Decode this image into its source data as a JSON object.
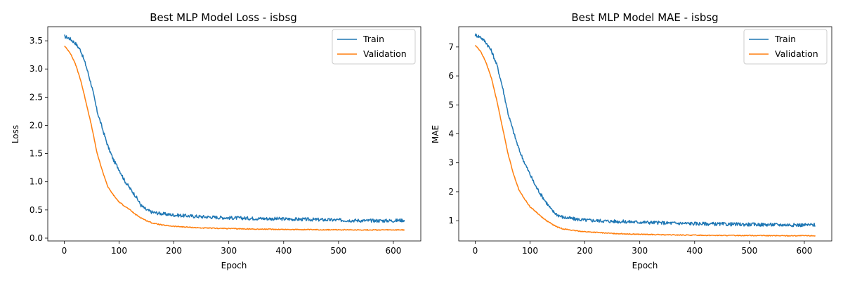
{
  "colors": {
    "train": "#1f77b4",
    "validation": "#ff7f0e",
    "axes": "#000000",
    "legend_border": "#cccccc"
  },
  "legend_labels": [
    "Train",
    "Validation"
  ],
  "chart_data": [
    {
      "type": "line",
      "title": "Best MLP Model Loss - isbsg",
      "xlabel": "Epoch",
      "ylabel": "Loss",
      "xlim": [
        -30,
        650
      ],
      "ylim": [
        -0.05,
        3.75
      ],
      "xticks": [
        0,
        100,
        200,
        300,
        400,
        500,
        600
      ],
      "yticks": [
        0.0,
        0.5,
        1.0,
        1.5,
        2.0,
        2.5,
        3.0,
        3.5
      ],
      "ytick_labels": [
        "0.0",
        "0.5",
        "1.0",
        "1.5",
        "2.0",
        "2.5",
        "3.0",
        "3.5"
      ],
      "grid": false,
      "legend_position": "top-right",
      "x_end": 620,
      "series": [
        {
          "name": "Train",
          "color": "#1f77b4",
          "points": [
            [
              0,
              3.58
            ],
            [
              10,
              3.54
            ],
            [
              20,
              3.46
            ],
            [
              30,
              3.33
            ],
            [
              40,
              3.05
            ],
            [
              50,
              2.7
            ],
            [
              60,
              2.25
            ],
            [
              70,
              1.93
            ],
            [
              80,
              1.62
            ],
            [
              90,
              1.38
            ],
            [
              100,
              1.22
            ],
            [
              110,
              1.02
            ],
            [
              120,
              0.88
            ],
            [
              130,
              0.75
            ],
            [
              140,
              0.58
            ],
            [
              150,
              0.5
            ],
            [
              160,
              0.46
            ],
            [
              180,
              0.43
            ],
            [
              200,
              0.41
            ],
            [
              250,
              0.38
            ],
            [
              300,
              0.36
            ],
            [
              350,
              0.35
            ],
            [
              400,
              0.34
            ],
            [
              450,
              0.33
            ],
            [
              500,
              0.32
            ],
            [
              550,
              0.31
            ],
            [
              600,
              0.31
            ],
            [
              620,
              0.32
            ]
          ],
          "noise": 0.03
        },
        {
          "name": "Validation",
          "color": "#ff7f0e",
          "points": [
            [
              0,
              3.41
            ],
            [
              10,
              3.3
            ],
            [
              20,
              3.1
            ],
            [
              30,
              2.8
            ],
            [
              40,
              2.4
            ],
            [
              50,
              1.98
            ],
            [
              60,
              1.5
            ],
            [
              70,
              1.18
            ],
            [
              80,
              0.9
            ],
            [
              90,
              0.76
            ],
            [
              100,
              0.64
            ],
            [
              110,
              0.57
            ],
            [
              120,
              0.5
            ],
            [
              130,
              0.42
            ],
            [
              140,
              0.36
            ],
            [
              150,
              0.31
            ],
            [
              160,
              0.27
            ],
            [
              180,
              0.23
            ],
            [
              200,
              0.21
            ],
            [
              250,
              0.18
            ],
            [
              300,
              0.17
            ],
            [
              350,
              0.16
            ],
            [
              400,
              0.155
            ],
            [
              450,
              0.15
            ],
            [
              500,
              0.148
            ],
            [
              550,
              0.146
            ],
            [
              600,
              0.145
            ],
            [
              620,
              0.145
            ]
          ],
          "noise": 0.008
        }
      ]
    },
    {
      "type": "line",
      "title": "Best MLP Model MAE - isbsg",
      "xlabel": "Epoch",
      "ylabel": "MAE",
      "xlim": [
        -30,
        650
      ],
      "ylim": [
        0.3,
        7.7
      ],
      "xticks": [
        0,
        100,
        200,
        300,
        400,
        500,
        600
      ],
      "yticks": [
        1,
        2,
        3,
        4,
        5,
        6,
        7
      ],
      "ytick_labels": [
        "1",
        "2",
        "3",
        "4",
        "5",
        "6",
        "7"
      ],
      "grid": false,
      "legend_position": "top-right",
      "x_end": 620,
      "series": [
        {
          "name": "Train",
          "color": "#1f77b4",
          "points": [
            [
              0,
              7.42
            ],
            [
              10,
              7.34
            ],
            [
              20,
              7.15
            ],
            [
              30,
              6.85
            ],
            [
              40,
              6.35
            ],
            [
              50,
              5.6
            ],
            [
              60,
              4.7
            ],
            [
              70,
              4.05
            ],
            [
              80,
              3.45
            ],
            [
              90,
              3.0
            ],
            [
              100,
              2.6
            ],
            [
              110,
              2.2
            ],
            [
              120,
              1.9
            ],
            [
              130,
              1.62
            ],
            [
              140,
              1.35
            ],
            [
              150,
              1.2
            ],
            [
              160,
              1.12
            ],
            [
              180,
              1.06
            ],
            [
              200,
              1.02
            ],
            [
              250,
              0.98
            ],
            [
              300,
              0.95
            ],
            [
              350,
              0.92
            ],
            [
              400,
              0.9
            ],
            [
              450,
              0.88
            ],
            [
              500,
              0.87
            ],
            [
              550,
              0.86
            ],
            [
              600,
              0.85
            ],
            [
              620,
              0.86
            ]
          ],
          "noise": 0.06
        },
        {
          "name": "Validation",
          "color": "#ff7f0e",
          "points": [
            [
              0,
              7.06
            ],
            [
              10,
              6.85
            ],
            [
              20,
              6.45
            ],
            [
              30,
              5.9
            ],
            [
              40,
              5.1
            ],
            [
              50,
              4.2
            ],
            [
              60,
              3.3
            ],
            [
              70,
              2.6
            ],
            [
              80,
              2.05
            ],
            [
              90,
              1.75
            ],
            [
              100,
              1.48
            ],
            [
              110,
              1.32
            ],
            [
              120,
              1.15
            ],
            [
              130,
              1.0
            ],
            [
              140,
              0.88
            ],
            [
              150,
              0.78
            ],
            [
              160,
              0.72
            ],
            [
              180,
              0.66
            ],
            [
              200,
              0.62
            ],
            [
              250,
              0.56
            ],
            [
              300,
              0.53
            ],
            [
              350,
              0.51
            ],
            [
              400,
              0.5
            ],
            [
              450,
              0.49
            ],
            [
              500,
              0.49
            ],
            [
              550,
              0.48
            ],
            [
              600,
              0.48
            ],
            [
              620,
              0.48
            ]
          ],
          "noise": 0.015
        }
      ]
    }
  ]
}
